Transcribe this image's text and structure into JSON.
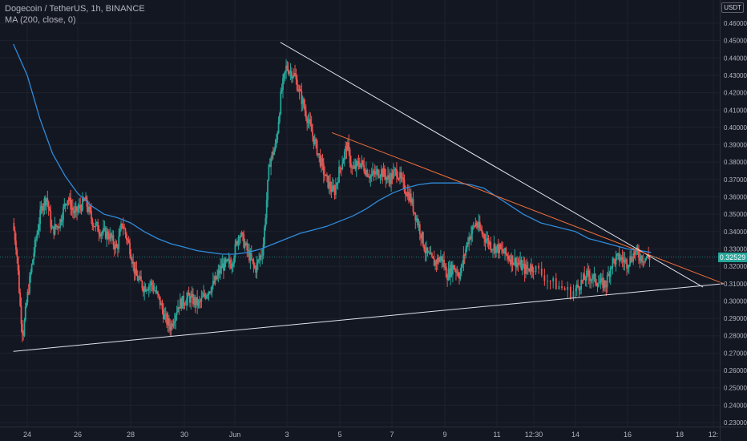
{
  "header": {
    "symbol": "Dogecoin / TetherUS, 1h, BINANCE",
    "indicator": "MA (200, close, 0)"
  },
  "axis": {
    "unit_label": "USDT",
    "last_price_label": "0.32529"
  },
  "colors": {
    "background": "#131722",
    "up": "#26a69a",
    "down": "#ef5350",
    "ma": "#2f8bdb",
    "trendline": "#e0e3eb",
    "resistance": "#f2703a",
    "grid": "#1e222d",
    "axis_text": "#b2b5be"
  },
  "chart_data": {
    "type": "candlestick",
    "x_tick_labels": [
      "24",
      "26",
      "28",
      "30",
      "Jun",
      "3",
      "5",
      "7",
      "9",
      "11",
      "12:30",
      "14",
      "16",
      "18",
      "12:"
    ],
    "y_ticks": [
      0.23,
      0.24,
      0.25,
      0.26,
      0.27,
      0.28,
      0.29,
      0.3,
      0.31,
      0.32,
      0.33,
      0.34,
      0.35,
      0.36,
      0.37,
      0.38,
      0.39,
      0.4,
      0.41,
      0.42,
      0.43,
      0.44,
      0.45,
      0.46
    ],
    "y_range": [
      0.226,
      0.47
    ],
    "x_range_days": [
      23.5,
      25.6
    ],
    "last_price": 0.32529,
    "price_path": [
      [
        23.45,
        0.345
      ],
      [
        23.6,
        0.33
      ],
      [
        23.75,
        0.295
      ],
      [
        23.85,
        0.28
      ],
      [
        24.0,
        0.3
      ],
      [
        24.3,
        0.33
      ],
      [
        24.6,
        0.355
      ],
      [
        24.8,
        0.36
      ],
      [
        25.0,
        0.34
      ],
      [
        25.3,
        0.345
      ],
      [
        25.6,
        0.36
      ],
      [
        25.9,
        0.35
      ],
      [
        26.3,
        0.358
      ],
      [
        26.6,
        0.345
      ],
      [
        26.9,
        0.34
      ],
      [
        27.2,
        0.338
      ],
      [
        27.5,
        0.33
      ],
      [
        27.7,
        0.345
      ],
      [
        28.0,
        0.33
      ],
      [
        28.2,
        0.315
      ],
      [
        28.5,
        0.308
      ],
      [
        28.8,
        0.31
      ],
      [
        29.1,
        0.3
      ],
      [
        29.3,
        0.29
      ],
      [
        29.5,
        0.285
      ],
      [
        29.8,
        0.298
      ],
      [
        30.2,
        0.302
      ],
      [
        30.6,
        0.298
      ],
      [
        30.9,
        0.305
      ],
      [
        31.2,
        0.31
      ],
      [
        31.5,
        0.32
      ],
      [
        31.9,
        0.322
      ],
      [
        32.2,
        0.34
      ],
      [
        32.6,
        0.325
      ],
      [
        32.8,
        0.318
      ],
      [
        33.1,
        0.33
      ],
      [
        33.35,
        0.38
      ],
      [
        33.6,
        0.39
      ],
      [
        33.8,
        0.42
      ],
      [
        34.0,
        0.435
      ],
      [
        34.3,
        0.43
      ],
      [
        34.6,
        0.415
      ],
      [
        34.9,
        0.4
      ],
      [
        35.2,
        0.385
      ],
      [
        35.5,
        0.37
      ],
      [
        35.8,
        0.362
      ],
      [
        36.0,
        0.375
      ],
      [
        36.3,
        0.39
      ],
      [
        36.5,
        0.375
      ],
      [
        36.8,
        0.38
      ],
      [
        37.2,
        0.372
      ],
      [
        37.6,
        0.375
      ],
      [
        37.9,
        0.37
      ],
      [
        38.2,
        0.375
      ],
      [
        38.5,
        0.365
      ],
      [
        38.7,
        0.36
      ],
      [
        38.9,
        0.35
      ],
      [
        39.1,
        0.34
      ],
      [
        39.3,
        0.328
      ],
      [
        39.6,
        0.322
      ],
      [
        39.9,
        0.325
      ],
      [
        40.1,
        0.315
      ],
      [
        40.35,
        0.32
      ],
      [
        40.6,
        0.315
      ],
      [
        40.9,
        0.335
      ],
      [
        41.2,
        0.345
      ],
      [
        41.5,
        0.338
      ],
      [
        41.8,
        0.332
      ],
      [
        42.1,
        0.33
      ],
      [
        42.5,
        0.325
      ],
      [
        42.8,
        0.322
      ],
      [
        43.1,
        0.318
      ],
      [
        43.4,
        0.32
      ],
      [
        43.7,
        0.31
      ],
      [
        43.95,
        0.305
      ],
      [
        44.2,
        0.31
      ],
      [
        44.5,
        0.315
      ],
      [
        44.8,
        0.312
      ],
      [
        45.0,
        0.31
      ],
      [
        45.2,
        0.31
      ],
      [
        45.4,
        0.322
      ],
      [
        45.7,
        0.325
      ],
      [
        46.0,
        0.322
      ],
      [
        46.3,
        0.328
      ],
      [
        46.6,
        0.325
      ],
      [
        46.85,
        0.325
      ]
    ],
    "ma_path": [
      [
        23.45,
        0.448
      ],
      [
        24.0,
        0.43
      ],
      [
        24.5,
        0.405
      ],
      [
        25.0,
        0.385
      ],
      [
        25.5,
        0.372
      ],
      [
        26.0,
        0.362
      ],
      [
        26.5,
        0.355
      ],
      [
        27.0,
        0.35
      ],
      [
        27.5,
        0.348
      ],
      [
        28.0,
        0.345
      ],
      [
        28.5,
        0.34
      ],
      [
        29.0,
        0.336
      ],
      [
        29.5,
        0.333
      ],
      [
        30.0,
        0.331
      ],
      [
        30.5,
        0.329
      ],
      [
        31.0,
        0.328
      ],
      [
        31.5,
        0.327
      ],
      [
        32.0,
        0.327
      ],
      [
        32.5,
        0.328
      ],
      [
        33.0,
        0.33
      ],
      [
        33.5,
        0.333
      ],
      [
        34.0,
        0.336
      ],
      [
        34.5,
        0.339
      ],
      [
        35.0,
        0.341
      ],
      [
        35.5,
        0.343
      ],
      [
        36.0,
        0.346
      ],
      [
        36.5,
        0.349
      ],
      [
        37.0,
        0.353
      ],
      [
        37.5,
        0.358
      ],
      [
        38.0,
        0.362
      ],
      [
        38.5,
        0.365
      ],
      [
        39.0,
        0.367
      ],
      [
        39.5,
        0.368
      ],
      [
        40.0,
        0.368
      ],
      [
        40.5,
        0.368
      ],
      [
        41.0,
        0.367
      ],
      [
        41.5,
        0.365
      ],
      [
        42.0,
        0.36
      ],
      [
        42.5,
        0.355
      ],
      [
        43.0,
        0.35
      ],
      [
        43.5,
        0.345
      ],
      [
        44.0,
        0.34
      ],
      [
        44.5,
        0.336
      ],
      [
        45.0,
        0.334
      ],
      [
        45.5,
        0.332
      ],
      [
        46.0,
        0.33
      ],
      [
        46.5,
        0.329
      ],
      [
        46.9,
        0.328
      ]
    ],
    "trendlines": [
      {
        "role": "support",
        "from": [
          23.45,
          0.271
        ],
        "to": [
          49.7,
          0.31
        ]
      },
      {
        "role": "descending-resistance",
        "from": [
          33.75,
          0.449
        ],
        "to": [
          48.9,
          0.308
        ]
      },
      {
        "role": "resistance",
        "from": [
          35.7,
          0.397
        ],
        "to": [
          49.7,
          0.31
        ]
      }
    ]
  }
}
